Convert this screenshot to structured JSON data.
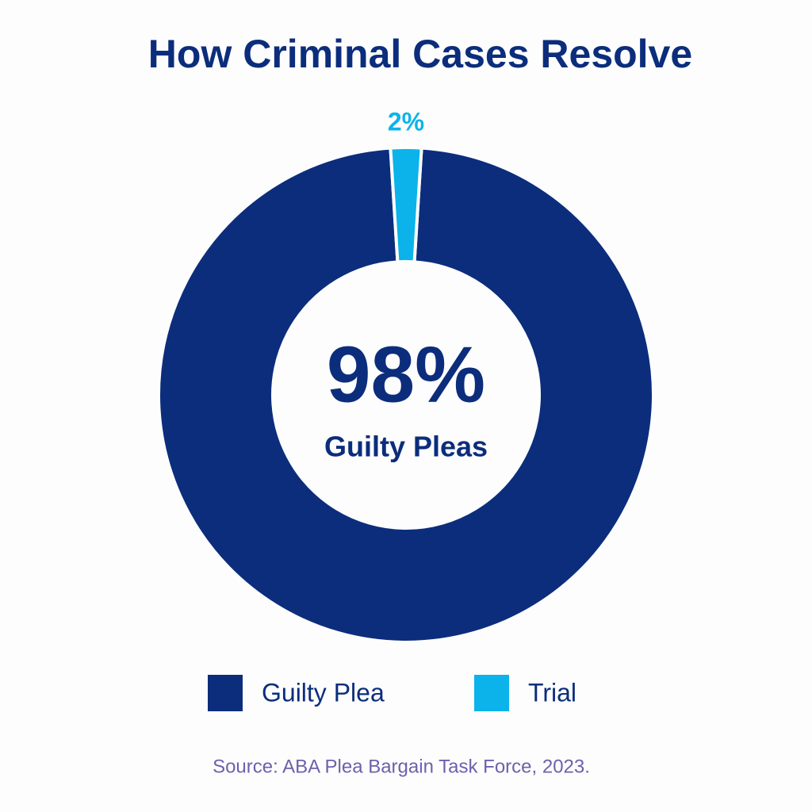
{
  "chart_data": {
    "type": "donut",
    "title": "How Criminal Cases Resolve",
    "categories": [
      "Guilty Plea",
      "Trial"
    ],
    "values": [
      98,
      2
    ],
    "value_labels": [
      "98%",
      "2%"
    ],
    "colors": [
      "#0b2d7c",
      "#0bb3ea"
    ],
    "center_label": "Guilty Pleas",
    "legend": "bottom",
    "source": "Source: ABA Plea Bargain Task Force, 2023."
  }
}
